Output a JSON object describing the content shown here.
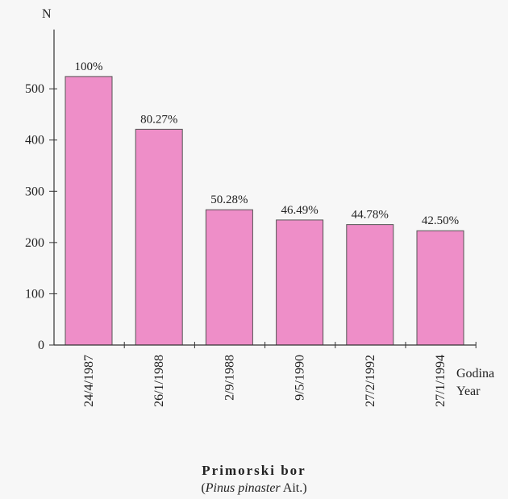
{
  "chart_data": {
    "type": "bar",
    "categories": [
      "24/4/1987",
      "26/1/1988",
      "2/9/1988",
      "9/5/1990",
      "27/2/1992",
      "27/1/1994"
    ],
    "values": [
      524,
      421,
      264,
      244,
      235,
      223
    ],
    "data_labels": [
      "100%",
      "80.27%",
      "50.28%",
      "46.49%",
      "44.78%",
      "42.50%"
    ],
    "ylabel": "N",
    "xlabel": [
      "Godina",
      "Year"
    ],
    "yticks": [
      0,
      100,
      200,
      300,
      400,
      500
    ],
    "ylim": [
      0,
      600
    ],
    "title": "Primorski bor",
    "subtitle": {
      "latin": "Pinus pinaster",
      "author": " Ait.",
      "open": "(",
      "close": ")"
    },
    "grid": false,
    "bar_color": "#ee8ec8",
    "bar_edge_color": "#555555"
  }
}
